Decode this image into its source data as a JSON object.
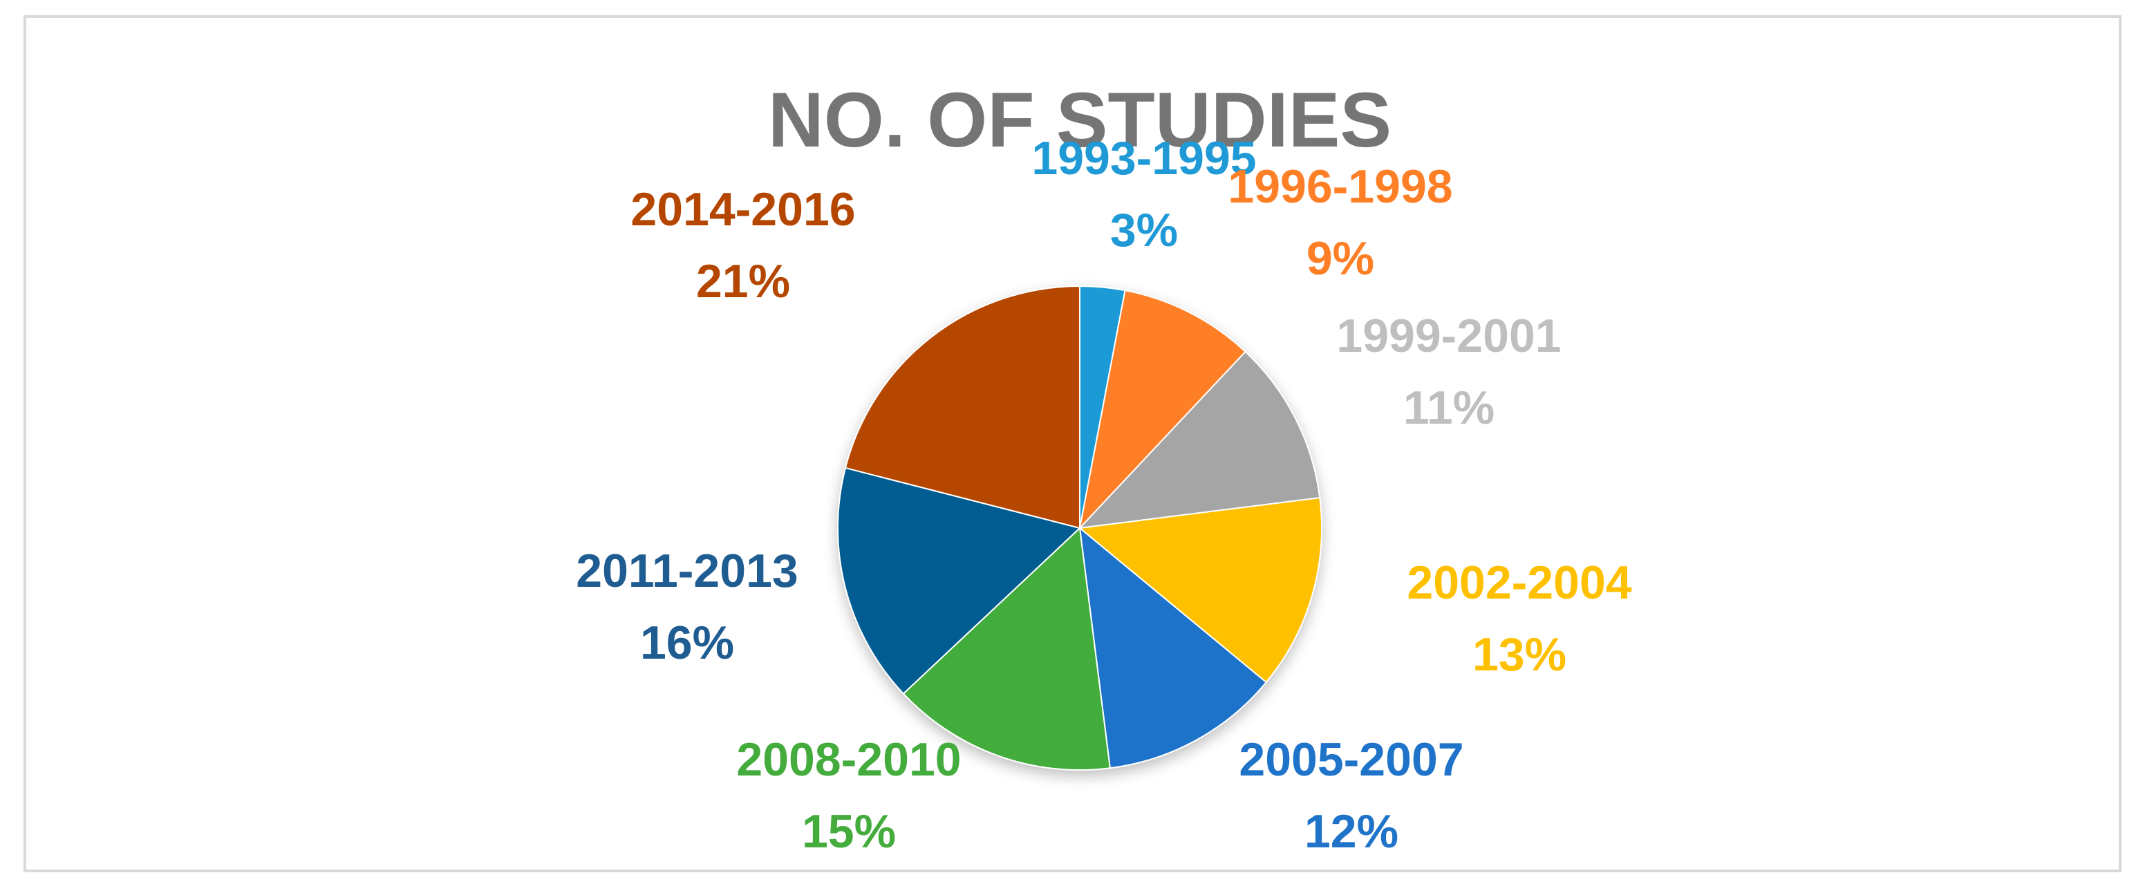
{
  "chart_data": {
    "type": "pie",
    "title": "NO. OF STUDIES",
    "start_angle_deg": 0,
    "direction": "clockwise",
    "slices": [
      {
        "label": "1993-1995",
        "value": 3,
        "percent_label": "3%",
        "color": "#1F9AD6"
      },
      {
        "label": "1996-1998",
        "value": 9,
        "percent_label": "9%",
        "color": "#FF7F27"
      },
      {
        "label": "1999-2001",
        "value": 11,
        "percent_label": "11%",
        "color": "#A5A5A5"
      },
      {
        "label": "2002-2004",
        "value": 13,
        "percent_label": "13%",
        "color": "#FFC000"
      },
      {
        "label": "2005-2007",
        "value": 12,
        "percent_label": "12%",
        "color": "#1F73C9"
      },
      {
        "label": "2008-2010",
        "value": 15,
        "percent_label": "15%",
        "color": "#43AC3D"
      },
      {
        "label": "2011-2013",
        "value": 16,
        "percent_label": "16%",
        "color": "#005C91"
      },
      {
        "label": "2014-2016",
        "value": 21,
        "percent_label": "21%",
        "color": "#B54600"
      }
    ],
    "label_colors": {
      "1993-1995": "#1F9AD6",
      "1996-1998": "#FF7F27",
      "1999-2001": "#BFBFBF",
      "2002-2004": "#FFC000",
      "2005-2007": "#1F73C9",
      "2008-2010": "#43AC3D",
      "2011-2013": "#1F5C91",
      "2014-2016": "#B54600"
    }
  }
}
